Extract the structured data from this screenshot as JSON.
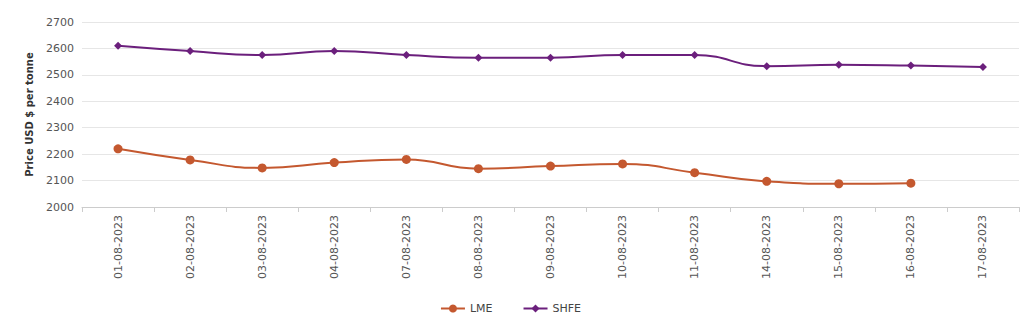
{
  "chart_data": {
    "type": "line",
    "y_label": "Price USD $ per tonne",
    "categories": [
      "01-08-2023",
      "02-08-2023",
      "03-08-2023",
      "04-08-2023",
      "07-08-2023",
      "08-08-2023",
      "09-08-2023",
      "10-08-2023",
      "11-08-2023",
      "14-08-2023",
      "15-08-2023",
      "16-08-2023",
      "17-08-2023"
    ],
    "series": [
      {
        "name": "LME",
        "color": "#c4582f",
        "marker": "circle",
        "values": [
          2220,
          2178,
          2148,
          2168,
          2180,
          2145,
          2155,
          2163,
          2130,
          2097,
          2088,
          2090,
          null
        ]
      },
      {
        "name": "SHFE",
        "color": "#6b1f7c",
        "marker": "diamond",
        "values": [
          2610,
          2590,
          2575,
          2590,
          2575,
          2565,
          2565,
          2575,
          2575,
          2533,
          2538,
          2535,
          2530
        ]
      }
    ],
    "ylim": [
      2000,
      2700
    ],
    "yticks": [
      2000,
      2100,
      2200,
      2300,
      2400,
      2500,
      2600,
      2700
    ],
    "grid": true,
    "legend": "bottom"
  }
}
